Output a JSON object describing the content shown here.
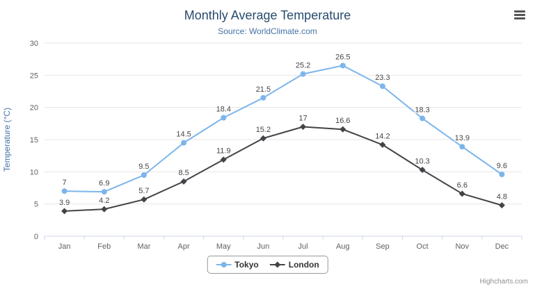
{
  "header": {
    "title": "Monthly Average Temperature",
    "subtitle": "Source: WorldClimate.com"
  },
  "chart_data": {
    "type": "line",
    "title": "Monthly Average Temperature",
    "subtitle": "Source: WorldClimate.com",
    "categories": [
      "Jan",
      "Feb",
      "Mar",
      "Apr",
      "May",
      "Jun",
      "Jul",
      "Aug",
      "Sep",
      "Oct",
      "Nov",
      "Dec"
    ],
    "series": [
      {
        "name": "Tokyo",
        "color": "#7cb5ec",
        "marker": "circle",
        "values": [
          7,
          6.9,
          9.5,
          14.5,
          18.4,
          21.5,
          25.2,
          26.5,
          23.3,
          18.3,
          13.9,
          9.6
        ]
      },
      {
        "name": "London",
        "color": "#434348",
        "marker": "diamond",
        "values": [
          3.9,
          4.2,
          5.7,
          8.5,
          11.9,
          15.2,
          17,
          16.6,
          14.2,
          10.3,
          6.6,
          4.8
        ]
      }
    ],
    "xlabel": "",
    "ylabel": "Temperature (°C)",
    "ylim": [
      0,
      30
    ],
    "yticks": [
      0,
      5,
      10,
      15,
      20,
      25,
      30
    ],
    "grid": true,
    "legend_position": "bottom"
  },
  "colors": {
    "title": "#274b6d",
    "subtitle": "#4572a7",
    "axis_label": "#606060",
    "axis_line": "#ccd6eb",
    "gridline": "#e6e6e6",
    "y_axis_title": "#4572a7"
  },
  "icons": {
    "export_menu": "hamburger-menu"
  },
  "credits": {
    "label": "Highcharts.com"
  }
}
